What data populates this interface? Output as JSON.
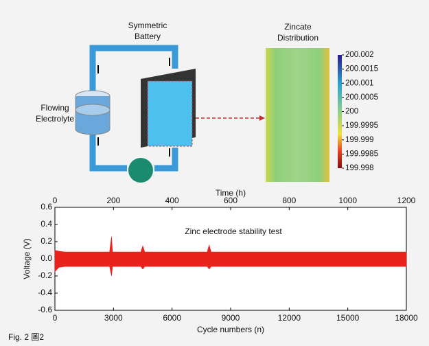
{
  "diagram": {
    "battery_label": [
      "Symmetric",
      "Battery"
    ],
    "electrolyte_label": [
      "Flowing",
      "Electrolyte"
    ],
    "zincate_label": [
      "Zincate",
      "Distribution"
    ],
    "colorbar_ticks": [
      200.002,
      200.0015,
      200.001,
      200.0005,
      200,
      199.9995,
      199.999,
      199.9985,
      199.998
    ]
  },
  "chart_data": {
    "type": "area",
    "title": "Zinc electrode stability test",
    "xlabel": "Cycle numbers (n)",
    "x2label": "Time (h)",
    "ylabel": "Voltage (V)",
    "color": "#e8221c",
    "x": [
      0,
      200,
      500,
      1000,
      2800,
      2900,
      2950,
      3000,
      4400,
      4500,
      4600,
      7800,
      7900,
      8000,
      10000,
      12000,
      14000,
      16000,
      18000
    ],
    "upper": [
      0.1,
      0.09,
      0.08,
      0.08,
      0.08,
      0.26,
      0.08,
      0.08,
      0.08,
      0.15,
      0.08,
      0.08,
      0.16,
      0.08,
      0.08,
      0.08,
      0.08,
      0.08,
      0.08
    ],
    "lower": [
      -0.15,
      -0.1,
      -0.09,
      -0.09,
      -0.09,
      -0.2,
      -0.09,
      -0.09,
      -0.09,
      -0.12,
      -0.09,
      -0.09,
      -0.12,
      -0.09,
      -0.09,
      -0.09,
      -0.09,
      -0.09,
      -0.09
    ],
    "xlim": [
      0,
      18000
    ],
    "xticks": [
      0,
      3000,
      6000,
      9000,
      12000,
      15000,
      18000
    ],
    "x2lim": [
      0,
      1200
    ],
    "x2ticks": [
      0,
      200,
      400,
      600,
      800,
      1000,
      1200
    ],
    "ylim": [
      -0.6,
      0.6
    ],
    "yticks": [
      -0.6,
      -0.4,
      -0.2,
      {
        "value": 0,
        "label": "0.0"
      },
      0.2,
      0.4,
      0.6
    ]
  },
  "caption": "Fig. 2 圖2"
}
